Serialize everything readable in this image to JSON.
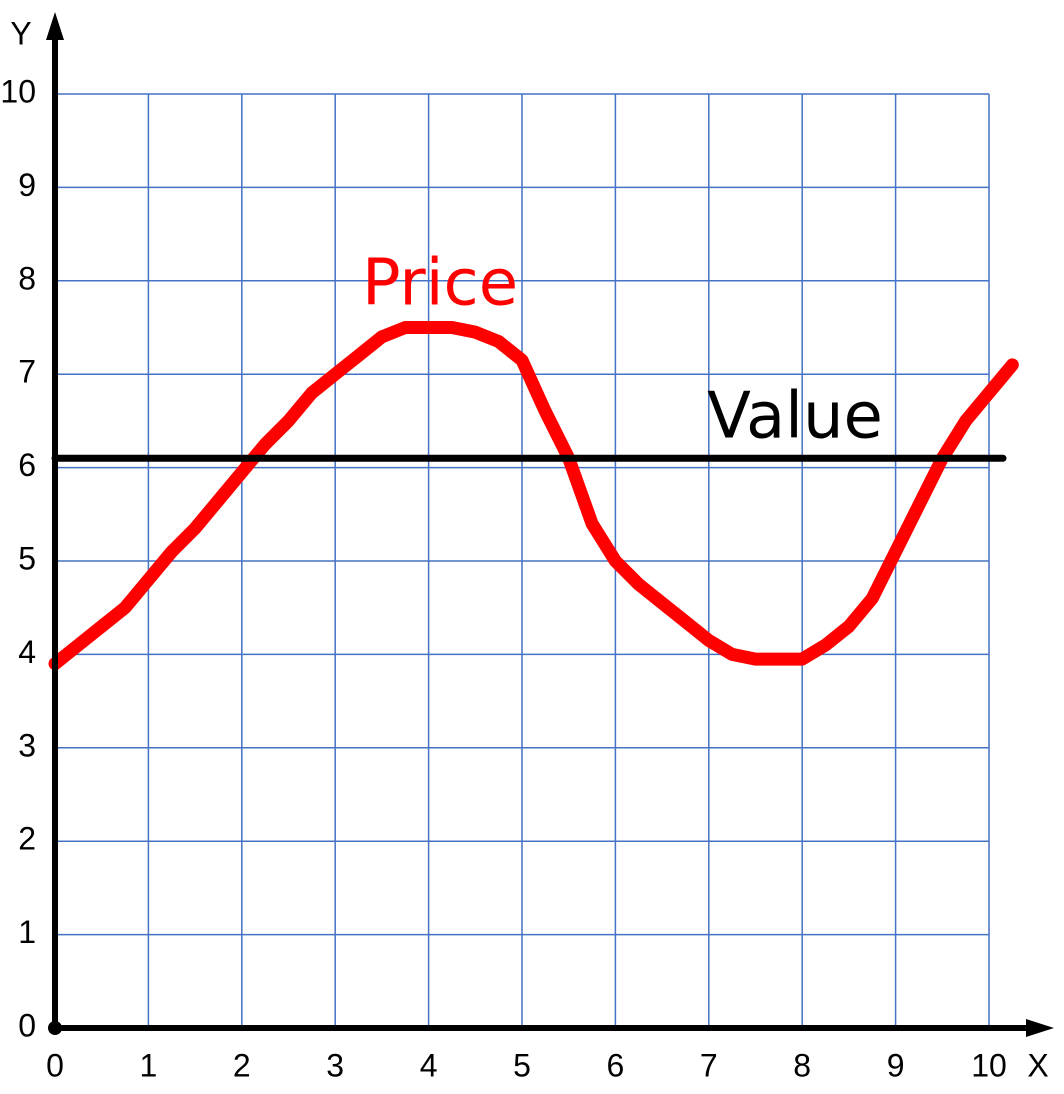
{
  "chart_data": {
    "type": "line",
    "x_label": "X",
    "y_label": "Y",
    "xlim": [
      0,
      10
    ],
    "ylim": [
      0,
      10
    ],
    "xticks": [
      0,
      1,
      2,
      3,
      4,
      5,
      6,
      7,
      8,
      9,
      10
    ],
    "yticks": [
      0,
      1,
      2,
      3,
      4,
      5,
      6,
      7,
      8,
      9,
      10
    ],
    "grid": true,
    "grid_color": "#4472c4",
    "series": [
      {
        "name": "Price",
        "color": "#ff0000",
        "x": [
          0,
          0.25,
          0.5,
          0.75,
          1,
          1.25,
          1.5,
          1.75,
          2,
          2.25,
          2.5,
          2.75,
          3,
          3.25,
          3.5,
          3.75,
          4,
          4.25,
          4.5,
          4.75,
          5,
          5.25,
          5.5,
          5.75,
          6,
          6.25,
          6.5,
          6.75,
          7,
          7.25,
          7.5,
          7.75,
          8,
          8.25,
          8.5,
          8.75,
          9,
          9.25,
          9.5,
          9.75,
          10,
          10.25
        ],
        "values": [
          3.9,
          4.1,
          4.3,
          4.5,
          4.8,
          5.1,
          5.35,
          5.65,
          5.95,
          6.25,
          6.5,
          6.8,
          7.0,
          7.2,
          7.4,
          7.5,
          7.5,
          7.5,
          7.45,
          7.35,
          7.15,
          6.6,
          6.1,
          5.4,
          5.0,
          4.75,
          4.55,
          4.35,
          4.15,
          4.0,
          3.95,
          3.95,
          3.95,
          4.1,
          4.3,
          4.6,
          5.1,
          5.6,
          6.1,
          6.5,
          6.8,
          7.1
        ]
      },
      {
        "name": "Value",
        "color": "#000000",
        "x": [
          0,
          10.15
        ],
        "values": [
          6.1,
          6.1
        ]
      }
    ]
  }
}
